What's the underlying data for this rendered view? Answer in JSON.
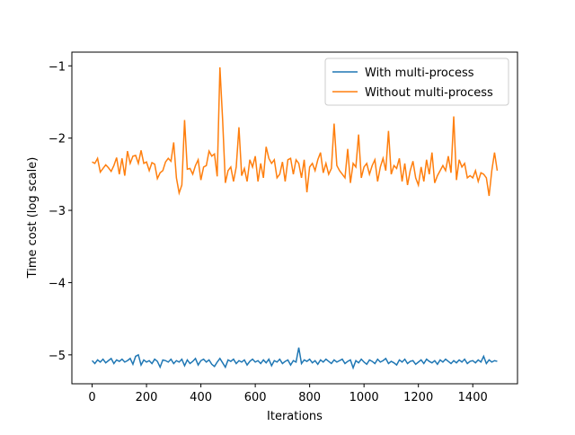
{
  "chart_data": {
    "type": "line",
    "x_label": "Iterations",
    "y_label": "Time cost (log scale)",
    "xlim": [
      -74.5,
      1564.5
    ],
    "xticks": [
      0,
      200,
      400,
      600,
      800,
      1000,
      1200,
      1400
    ],
    "ylim": [
      -5.4,
      -0.81
    ],
    "yticks": [
      {
        "value": -5,
        "label": "−5"
      },
      {
        "value": -4,
        "label": "−4"
      },
      {
        "value": -3,
        "label": "−3"
      },
      {
        "value": -2,
        "label": "−2"
      },
      {
        "value": -1,
        "label": "−1"
      }
    ],
    "legend": "upper right",
    "x": [
      0,
      10,
      20,
      30,
      40,
      50,
      60,
      70,
      80,
      90,
      100,
      110,
      120,
      130,
      140,
      150,
      160,
      170,
      180,
      190,
      200,
      210,
      220,
      230,
      240,
      250,
      260,
      270,
      280,
      290,
      300,
      310,
      320,
      330,
      340,
      350,
      360,
      370,
      380,
      390,
      400,
      410,
      420,
      430,
      440,
      450,
      460,
      470,
      480,
      490,
      500,
      510,
      520,
      530,
      540,
      550,
      560,
      570,
      580,
      590,
      600,
      610,
      620,
      630,
      640,
      650,
      660,
      670,
      680,
      690,
      700,
      710,
      720,
      730,
      740,
      750,
      760,
      770,
      780,
      790,
      800,
      810,
      820,
      830,
      840,
      850,
      860,
      870,
      880,
      890,
      900,
      910,
      920,
      930,
      940,
      950,
      960,
      970,
      980,
      990,
      1000,
      1010,
      1020,
      1030,
      1040,
      1050,
      1060,
      1070,
      1080,
      1090,
      1100,
      1110,
      1120,
      1130,
      1140,
      1150,
      1160,
      1170,
      1180,
      1190,
      1200,
      1210,
      1220,
      1230,
      1240,
      1250,
      1260,
      1270,
      1280,
      1290,
      1300,
      1310,
      1320,
      1330,
      1340,
      1350,
      1360,
      1370,
      1380,
      1390,
      1400,
      1410,
      1420,
      1430,
      1440,
      1450,
      1460,
      1470,
      1480,
      1490
    ],
    "series": [
      {
        "name": "With multi-process",
        "color": "#1f77b4",
        "values": [
          -5.08,
          -5.12,
          -5.07,
          -5.1,
          -5.06,
          -5.11,
          -5.08,
          -5.05,
          -5.12,
          -5.07,
          -5.09,
          -5.06,
          -5.1,
          -5.08,
          -5.05,
          -5.13,
          -5.02,
          -5.0,
          -5.14,
          -5.07,
          -5.1,
          -5.08,
          -5.12,
          -5.06,
          -5.09,
          -5.17,
          -5.07,
          -5.08,
          -5.1,
          -5.06,
          -5.12,
          -5.08,
          -5.1,
          -5.06,
          -5.15,
          -5.07,
          -5.12,
          -5.09,
          -5.05,
          -5.14,
          -5.08,
          -5.06,
          -5.1,
          -5.07,
          -5.13,
          -5.16,
          -5.1,
          -5.05,
          -5.11,
          -5.17,
          -5.07,
          -5.09,
          -5.06,
          -5.12,
          -5.08,
          -5.1,
          -5.07,
          -5.14,
          -5.09,
          -5.06,
          -5.1,
          -5.08,
          -5.12,
          -5.07,
          -5.11,
          -5.06,
          -5.15,
          -5.08,
          -5.1,
          -5.06,
          -5.12,
          -5.09,
          -5.07,
          -5.14,
          -5.08,
          -5.1,
          -4.9,
          -5.12,
          -5.07,
          -5.09,
          -5.06,
          -5.11,
          -5.08,
          -5.13,
          -5.07,
          -5.1,
          -5.06,
          -5.09,
          -5.12,
          -5.07,
          -5.1,
          -5.08,
          -5.06,
          -5.12,
          -5.09,
          -5.07,
          -5.18,
          -5.08,
          -5.11,
          -5.06,
          -5.1,
          -5.13,
          -5.07,
          -5.09,
          -5.12,
          -5.06,
          -5.1,
          -5.08,
          -5.05,
          -5.12,
          -5.09,
          -5.11,
          -5.14,
          -5.07,
          -5.1,
          -5.06,
          -5.12,
          -5.09,
          -5.08,
          -5.13,
          -5.1,
          -5.07,
          -5.12,
          -5.06,
          -5.09,
          -5.11,
          -5.08,
          -5.13,
          -5.07,
          -5.1,
          -5.06,
          -5.09,
          -5.12,
          -5.08,
          -5.11,
          -5.07,
          -5.1,
          -5.06,
          -5.12,
          -5.09,
          -5.08,
          -5.11,
          -5.07,
          -5.1,
          -5.02,
          -5.12,
          -5.07,
          -5.1,
          -5.08,
          -5.09
        ]
      },
      {
        "name": "Without multi-process",
        "color": "#ff7f0e",
        "values": [
          -2.33,
          -2.35,
          -2.28,
          -2.47,
          -2.42,
          -2.37,
          -2.41,
          -2.46,
          -2.38,
          -2.27,
          -2.5,
          -2.28,
          -2.52,
          -2.18,
          -2.35,
          -2.25,
          -2.24,
          -2.35,
          -2.17,
          -2.35,
          -2.33,
          -2.45,
          -2.34,
          -2.36,
          -2.56,
          -2.48,
          -2.45,
          -2.33,
          -2.28,
          -2.32,
          -2.06,
          -2.55,
          -2.76,
          -2.65,
          -1.75,
          -2.43,
          -2.42,
          -2.5,
          -2.38,
          -2.3,
          -2.58,
          -2.4,
          -2.38,
          -2.18,
          -2.25,
          -2.22,
          -2.53,
          -1.02,
          -1.75,
          -2.62,
          -2.45,
          -2.4,
          -2.6,
          -2.4,
          -1.85,
          -2.52,
          -2.42,
          -2.6,
          -2.3,
          -2.4,
          -2.25,
          -2.6,
          -2.35,
          -2.55,
          -2.12,
          -2.28,
          -2.35,
          -2.3,
          -2.55,
          -2.5,
          -2.33,
          -2.6,
          -2.3,
          -2.28,
          -2.5,
          -2.3,
          -2.35,
          -2.55,
          -2.3,
          -2.75,
          -2.4,
          -2.35,
          -2.45,
          -2.3,
          -2.2,
          -2.48,
          -2.35,
          -2.5,
          -2.42,
          -1.8,
          -2.38,
          -2.45,
          -2.5,
          -2.55,
          -2.15,
          -2.62,
          -2.35,
          -2.4,
          -1.95,
          -2.55,
          -2.4,
          -2.35,
          -2.5,
          -2.38,
          -2.3,
          -2.6,
          -2.4,
          -2.28,
          -2.45,
          -1.9,
          -2.5,
          -2.38,
          -2.42,
          -2.28,
          -2.6,
          -2.35,
          -2.65,
          -2.45,
          -2.32,
          -2.55,
          -2.65,
          -2.4,
          -2.6,
          -2.3,
          -2.5,
          -2.2,
          -2.62,
          -2.52,
          -2.45,
          -2.38,
          -2.45,
          -2.25,
          -2.48,
          -1.7,
          -2.58,
          -2.3,
          -2.4,
          -2.35,
          -2.55,
          -2.52,
          -2.55,
          -2.45,
          -2.6,
          -2.48,
          -2.5,
          -2.55,
          -2.8,
          -2.45,
          -2.2,
          -2.45
        ]
      }
    ]
  }
}
